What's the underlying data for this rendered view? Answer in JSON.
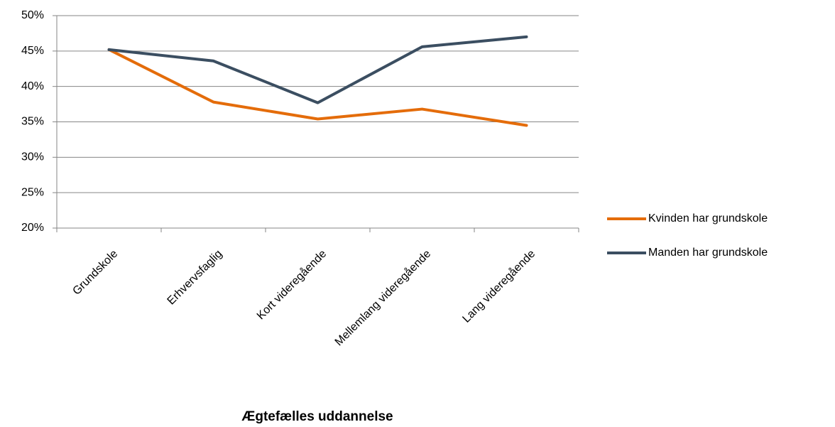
{
  "chart_data": {
    "type": "line",
    "x_label": "Ægtefælles uddannelse",
    "categories": [
      "Grundskole",
      "Erhvervsfaglig",
      "Kort videregående",
      "Mellemlang videregående",
      "Lang videregående"
    ],
    "series": [
      {
        "name": "Kvinden har grundskole",
        "color": "#e46c0a",
        "values": [
          45.2,
          37.8,
          35.4,
          36.8,
          34.5
        ]
      },
      {
        "name": "Manden har grundskole",
        "color": "#3b4e61",
        "values": [
          45.2,
          43.6,
          37.7,
          45.6,
          47.0
        ]
      }
    ],
    "ylim": [
      20,
      50
    ],
    "yticks": [
      {
        "value": 20,
        "label": "20%"
      },
      {
        "value": 25,
        "label": "25%"
      },
      {
        "value": 30,
        "label": "30%"
      },
      {
        "value": 35,
        "label": "35%"
      },
      {
        "value": 40,
        "label": "40%"
      },
      {
        "value": 45,
        "label": "45%"
      },
      {
        "value": 50,
        "label": "50%"
      }
    ],
    "grid": true,
    "legend": "right"
  }
}
